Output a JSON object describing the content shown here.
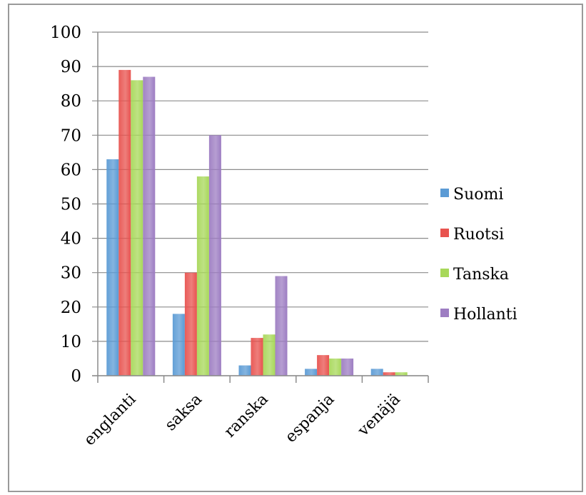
{
  "chart_data": {
    "type": "bar",
    "title": "",
    "xlabel": "",
    "ylabel": "",
    "categories": [
      "englanti",
      "saksa",
      "ranska",
      "espanja",
      "venäjä"
    ],
    "series": [
      {
        "name": "Suomi",
        "color": "#5b9bd5",
        "values": [
          63,
          18,
          3,
          2,
          2
        ]
      },
      {
        "name": "Ruotsi",
        "color": "#e8534f",
        "values": [
          89,
          30,
          11,
          6,
          1
        ]
      },
      {
        "name": "Tanska",
        "color": "#a8d85a",
        "values": [
          86,
          58,
          12,
          5,
          1
        ]
      },
      {
        "name": "Hollanti",
        "color": "#9d7dc2",
        "values": [
          87,
          70,
          29,
          5,
          0
        ]
      }
    ],
    "ylim": [
      0,
      100
    ],
    "yticks": [
      0,
      10,
      20,
      30,
      40,
      50,
      60,
      70,
      80,
      90,
      100
    ],
    "grid": true,
    "legend_position": "right"
  }
}
